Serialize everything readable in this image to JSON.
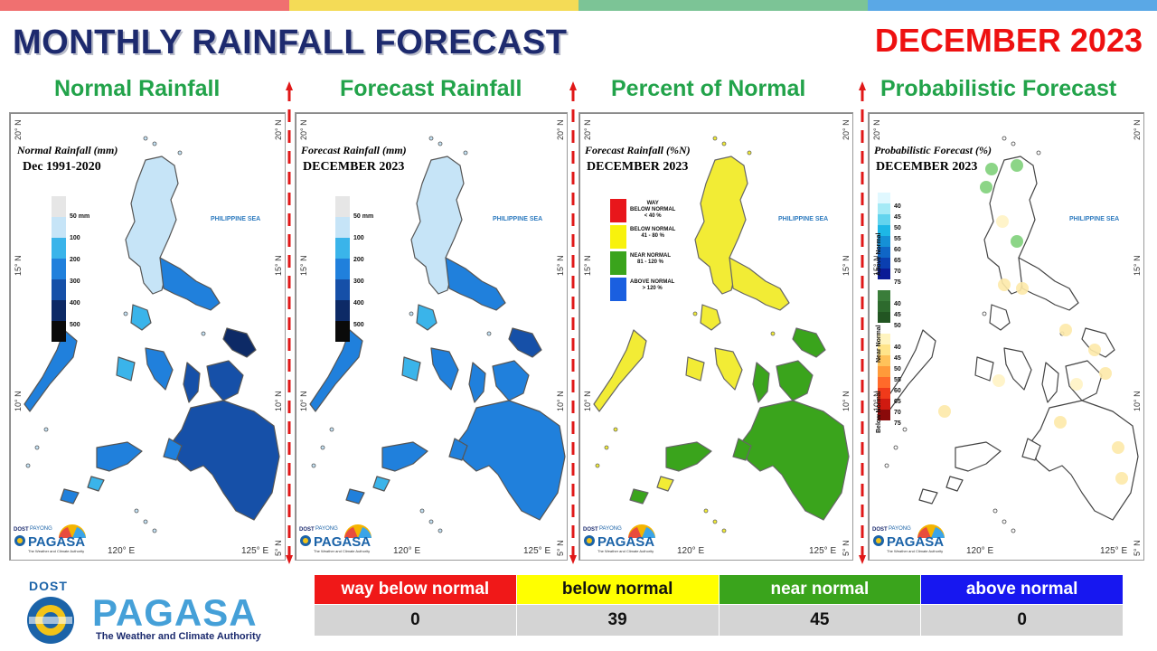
{
  "header": {
    "title": "MONTHLY RAINFALL FORECAST",
    "month": "DECEMBER 2023",
    "topbar_colors": [
      "#f07070",
      "#f4db56",
      "#7cc496",
      "#5aa8e6"
    ]
  },
  "panels": [
    {
      "heading": "Normal Rainfall",
      "map_title": "Normal Rainfall (mm)",
      "map_subtitle": "Dec 1991-2020",
      "legend": [
        "50 mm",
        "100",
        "200",
        "300",
        "400",
        "500"
      ]
    },
    {
      "heading": "Forecast Rainfall",
      "map_title": "Forecast Rainfall (mm)",
      "map_subtitle": "DECEMBER 2023",
      "legend": [
        "50 mm",
        "100",
        "200",
        "300",
        "400",
        "500"
      ]
    },
    {
      "heading": "Percent of Normal",
      "map_title": "Forecast Rainfall (%N)",
      "map_subtitle": "DECEMBER 2023",
      "legend": [
        {
          "label": "WAY\nBELOW NORMAL\n< 40 %",
          "color": "#e8161b"
        },
        {
          "label": "BELOW NORMAL\n41 - 80 %",
          "color": "#f8f20c"
        },
        {
          "label": "NEAR NORMAL\n81 - 120 %",
          "color": "#3aa41c"
        },
        {
          "label": "ABOVE NORMAL\n> 120 %",
          "color": "#1a5fe0"
        }
      ]
    },
    {
      "heading": "Probabilistic Forecast",
      "map_title": "Probabilistic Forecast (%)",
      "map_subtitle": "DECEMBER 2023",
      "legend_groups": [
        "Above Normal",
        "Near Normal",
        "Below Normal"
      ],
      "legend_above": [
        "40",
        "45",
        "50",
        "55",
        "60",
        "65",
        "70",
        "75"
      ],
      "legend_near": [
        "40",
        "45",
        "50"
      ],
      "legend_below": [
        "40",
        "45",
        "50",
        "55",
        "60",
        "65",
        "70",
        "75"
      ]
    }
  ],
  "map_labels": {
    "sea": "PHILIPPINE SEA",
    "lat": [
      "20° N",
      "15° N",
      "10° N",
      "5° N"
    ],
    "lon": [
      "120° E",
      "125° E"
    ],
    "logo_text": "PAGASA",
    "logo_dost": "DOST",
    "logo_payong": "PAYONG",
    "logo_tag": "The Weather and Climate Authority"
  },
  "footer_logo": {
    "dost": "DOST",
    "name": "PAGASA",
    "tagline": "The Weather and Climate Authority"
  },
  "summary": {
    "categories": [
      {
        "label": "way  below  normal",
        "color": "#f01818",
        "text_color": "#ffffff"
      },
      {
        "label": "below normal",
        "color": "#ffff00",
        "text_color": "#111111"
      },
      {
        "label": "near normal",
        "color": "#3aa41c",
        "text_color": "#ffffff"
      },
      {
        "label": "above normal",
        "color": "#1717f0",
        "text_color": "#ffffff"
      }
    ],
    "counts": [
      "0",
      "39",
      "45",
      "0"
    ]
  },
  "colors": {
    "rain_scale": [
      "#e6e6e6",
      "#c6e4f7",
      "#3ab4ea",
      "#2080dc",
      "#1650a8",
      "#0d2a66",
      "#0a0a0a"
    ],
    "prob_above": [
      "#e0f8ff",
      "#a5eaf6",
      "#63d4ee",
      "#1db7e6",
      "#1590d6",
      "#0f66c6",
      "#0a3fb0",
      "#0a1a96"
    ],
    "prob_near": [
      "#3a7d3a",
      "#2d6a2d",
      "#225522"
    ],
    "prob_below": [
      "#fff4c0",
      "#ffe48a",
      "#ffc25a",
      "#ff9a3a",
      "#ff6a2a",
      "#f03a1a",
      "#d01a10",
      "#8a0a0a"
    ]
  }
}
